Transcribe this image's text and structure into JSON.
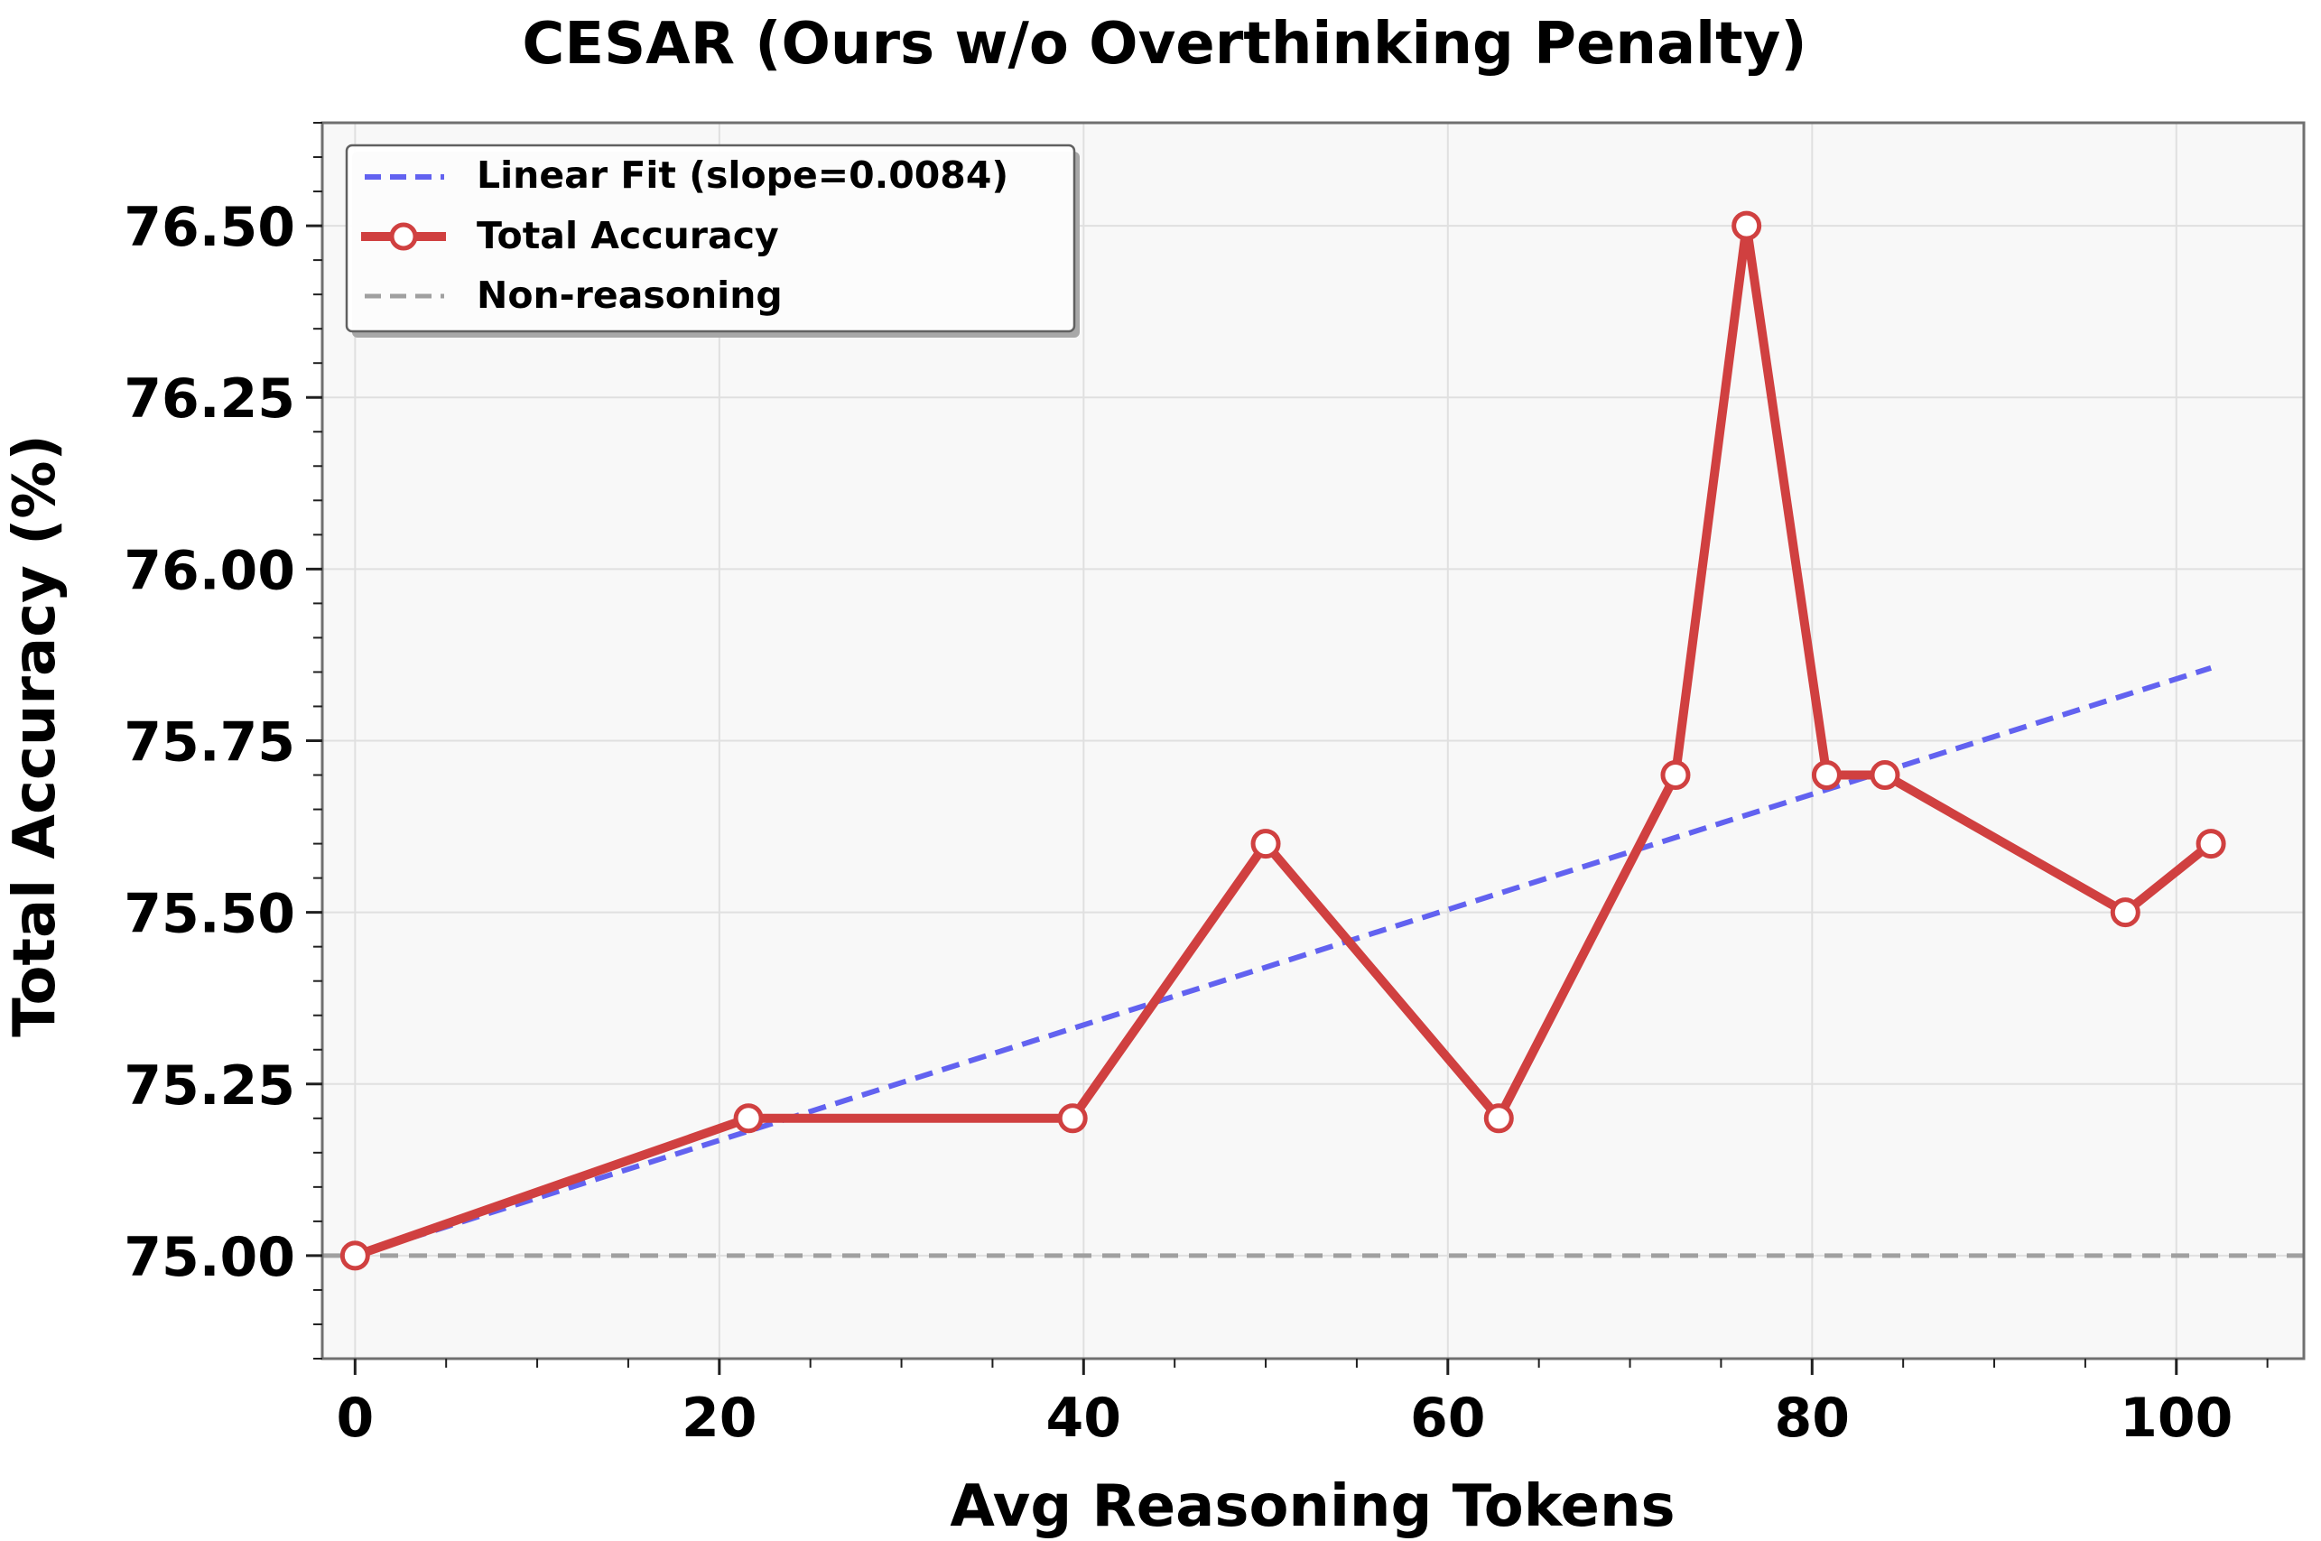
{
  "chart_data": {
    "type": "line",
    "title": "CESAR (Ours w/o Overthinking Penalty)",
    "xlabel": "Avg Reasoning Tokens",
    "ylabel": "Total Accuracy (%)",
    "xlim": [
      -1.8,
      107
    ],
    "ylim": [
      74.85,
      76.65
    ],
    "xticks": [
      0,
      20,
      40,
      60,
      80,
      100
    ],
    "xtick_labels": [
      "0",
      "20",
      "40",
      "60",
      "80",
      "100"
    ],
    "yticks": [
      75.0,
      75.25,
      75.5,
      75.75,
      76.0,
      76.25,
      76.5
    ],
    "ytick_labels": [
      "75.00",
      "75.25",
      "75.50",
      "75.75",
      "76.00",
      "76.25",
      "76.50"
    ],
    "grid": true,
    "legend_position": "top-left",
    "series": [
      {
        "name": "Total Accuracy",
        "color": "#d04040",
        "style": "solid-with-circle-markers",
        "x": [
          0,
          21.6,
          39.4,
          50.0,
          62.8,
          72.5,
          76.4,
          80.8,
          84.0,
          97.2,
          101.9
        ],
        "y": [
          75.0,
          75.2,
          75.2,
          75.6,
          75.2,
          75.7,
          76.5,
          75.7,
          75.7,
          75.5,
          75.6
        ]
      }
    ],
    "fit_line": {
      "name": "Linear Fit (slope=0.0084)",
      "color": "#6262f0",
      "style": "dashed",
      "x": [
        0,
        101.9
      ],
      "y": [
        75.0,
        75.856
      ]
    },
    "reference_line": {
      "name": "Non-reasoning",
      "color": "#a0a0a0",
      "style": "dashed",
      "y": 75.0
    }
  }
}
